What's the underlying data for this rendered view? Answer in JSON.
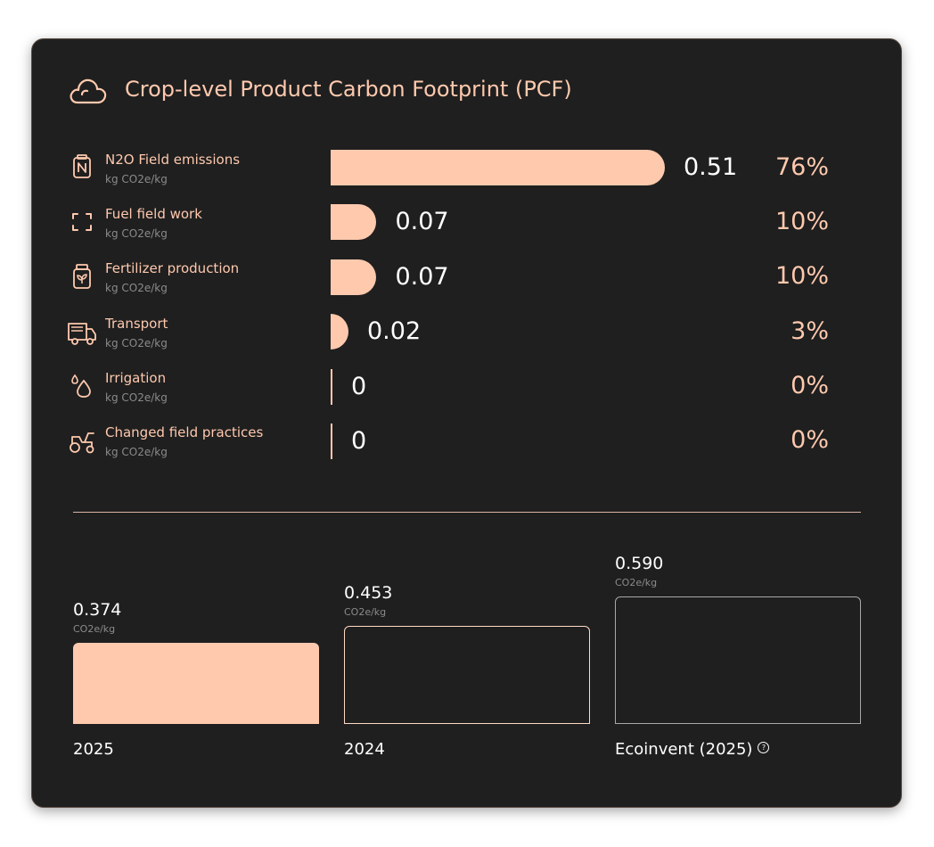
{
  "header": {
    "title": "Crop-level Product Carbon Footprint (PCF)",
    "icon": "cloud-icon"
  },
  "chart_data": [
    {
      "type": "bar",
      "orientation": "horizontal",
      "categories": [
        "N2O Field emissions",
        "Fuel field work",
        "Fertilizer production",
        "Transport",
        "Irrigation",
        "Changed field practices"
      ],
      "unit": "kg CO2e/kg",
      "values": [
        0.51,
        0.07,
        0.07,
        0.02,
        0,
        0
      ],
      "value_labels": [
        "0.51",
        "0.07",
        "0.07",
        "0.02",
        "0",
        "0"
      ],
      "shares": [
        "76%",
        "10%",
        "10%",
        "3%",
        "0%",
        "0%"
      ],
      "icons": [
        "nitrogen-can-icon",
        "fuel-frame-icon",
        "fertilizer-jar-icon",
        "truck-icon",
        "water-drops-icon",
        "tractor-icon"
      ],
      "bar_color": "#ffc9ae"
    },
    {
      "type": "bar",
      "categories": [
        "2025",
        "2024",
        "Ecoinvent (2025)"
      ],
      "values": [
        0.374,
        0.453,
        0.59
      ],
      "value_labels": [
        "0.374",
        "0.453",
        "0.590"
      ],
      "unit": "CO2e/kg",
      "styles": [
        "filled",
        "outline",
        "outline"
      ],
      "fill_color": "#ffc9ae",
      "outline_colors": [
        "#ffd9c6",
        "#a8a8a8"
      ]
    }
  ],
  "colors": {
    "background": "#1f1f1f",
    "accent": "#ffc9ae",
    "text": "#ffffff",
    "muted": "#8b8b8b"
  }
}
